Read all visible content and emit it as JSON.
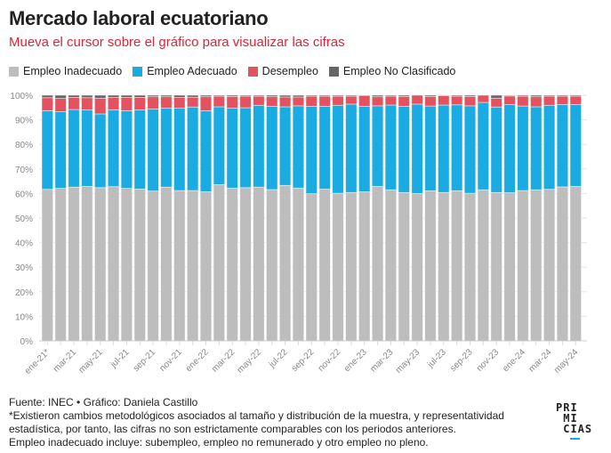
{
  "title": "Mercado laboral ecuatoriano",
  "subtitle": "Mueva el cursor sobre el gráfico para visualizar las cifras",
  "chart_data": {
    "type": "bar",
    "stacked": true,
    "categories": [
      "ene-21*",
      "feb-21",
      "mar-21",
      "abr-21",
      "may-21",
      "jun-21",
      "jul-21",
      "ago-21",
      "sep-21",
      "oct-21",
      "nov-21",
      "dic-21",
      "ene-22",
      "feb-22",
      "mar-22",
      "abr-22",
      "may-22",
      "jun-22",
      "jul-22",
      "ago-22",
      "sep-22",
      "oct-22",
      "nov-22",
      "dic-22",
      "ene-23",
      "feb-23",
      "mar-23",
      "abr-23",
      "may-23",
      "jun-23",
      "jul-23",
      "ago-23",
      "sep-23",
      "oct-23",
      "nov-23",
      "dic-23",
      "ene-24",
      "feb-24",
      "mar-24",
      "abr-24",
      "may-24"
    ],
    "tick_labels": [
      "ene-21*",
      "mar-21",
      "may-21",
      "jul-21",
      "sep-21",
      "nov-21",
      "ene-22",
      "mar-22",
      "may-22",
      "jul-22",
      "sep-22",
      "nov-22",
      "ene-23",
      "mar-23",
      "may-23",
      "jul-23",
      "sep-23",
      "nov-23",
      "ene-24",
      "mar-24",
      "may-24"
    ],
    "series": [
      {
        "name": "Empleo Inadecuado",
        "color": "#bdbdbd",
        "values": [
          61.7,
          62.1,
          62.6,
          62.9,
          62.4,
          62.8,
          62.1,
          61.8,
          61.0,
          62.6,
          61.2,
          61.2,
          60.7,
          63.6,
          62.2,
          62.4,
          62.6,
          61.6,
          63.3,
          62.2,
          59.9,
          61.8,
          60.1,
          60.4,
          60.7,
          62.9,
          61.5,
          60.4,
          60.0,
          61.1,
          60.4,
          61.1,
          60.1,
          61.5,
          60.4,
          60.3,
          61.2,
          61.5,
          61.7,
          62.7,
          62.9
        ]
      },
      {
        "name": "Empleo Adecuado",
        "color": "#1aabe2",
        "values": [
          32.0,
          31.2,
          31.6,
          31.1,
          30.0,
          31.3,
          31.6,
          32.2,
          33.4,
          32.1,
          33.5,
          34.0,
          33.0,
          31.7,
          32.5,
          32.5,
          33.3,
          33.9,
          32.0,
          33.5,
          35.6,
          33.7,
          35.8,
          36.0,
          34.8,
          32.8,
          34.5,
          35.1,
          36.4,
          34.5,
          35.6,
          35.0,
          35.6,
          35.6,
          34.8,
          35.9,
          34.4,
          33.8,
          34.2,
          33.5,
          33.3
        ]
      },
      {
        "name": "Desempleo",
        "color": "#e5525f",
        "values": [
          5.3,
          5.4,
          4.9,
          5.0,
          6.4,
          5.0,
          5.4,
          5.1,
          5.0,
          4.7,
          4.4,
          4.0,
          5.7,
          4.3,
          4.8,
          4.7,
          3.7,
          3.9,
          4.0,
          3.6,
          4.1,
          4.1,
          3.7,
          3.2,
          4.4,
          3.7,
          3.6,
          4.0,
          3.6,
          3.9,
          3.8,
          3.5,
          3.8,
          2.9,
          3.6,
          3.5,
          4.0,
          4.1,
          3.7,
          3.4,
          3.4
        ]
      },
      {
        "name": "Empleo No Clasificado",
        "color": "#666666",
        "values": [
          1.0,
          1.3,
          0.9,
          1.0,
          1.2,
          0.9,
          0.9,
          0.9,
          0.6,
          0.6,
          0.9,
          0.8,
          0.6,
          0.4,
          0.5,
          0.4,
          0.4,
          0.6,
          0.7,
          0.7,
          0.4,
          0.4,
          0.4,
          0.4,
          0.1,
          0.6,
          0.4,
          0.5,
          0,
          0.5,
          0.2,
          0.4,
          0.5,
          0,
          1.2,
          0.3,
          0.4,
          0.6,
          0.4,
          0.4,
          0.4
        ]
      }
    ],
    "ylim": [
      0,
      100
    ],
    "yticks": [
      "0%",
      "10%",
      "20%",
      "30%",
      "40%",
      "50%",
      "60%",
      "70%",
      "80%",
      "90%",
      "100%"
    ],
    "grid": true,
    "legend": "top-left"
  },
  "footer": {
    "line1": "Fuente: INEC • Gráfico: Daniela Castillo",
    "line2": "*Existieron cambios metodológicos asociados al tamaño y distribución de la muestra, y representatividad estadística, por tanto, las cifras no son estrictamente comparables con los periodos anteriores.",
    "line3": "Empleo inadecuado incluye: subempleo, empleo no remunerado y otro empleo no pleno."
  },
  "logo": {
    "text": "PRIMICIAS",
    "accent": "#1aa9e0"
  }
}
